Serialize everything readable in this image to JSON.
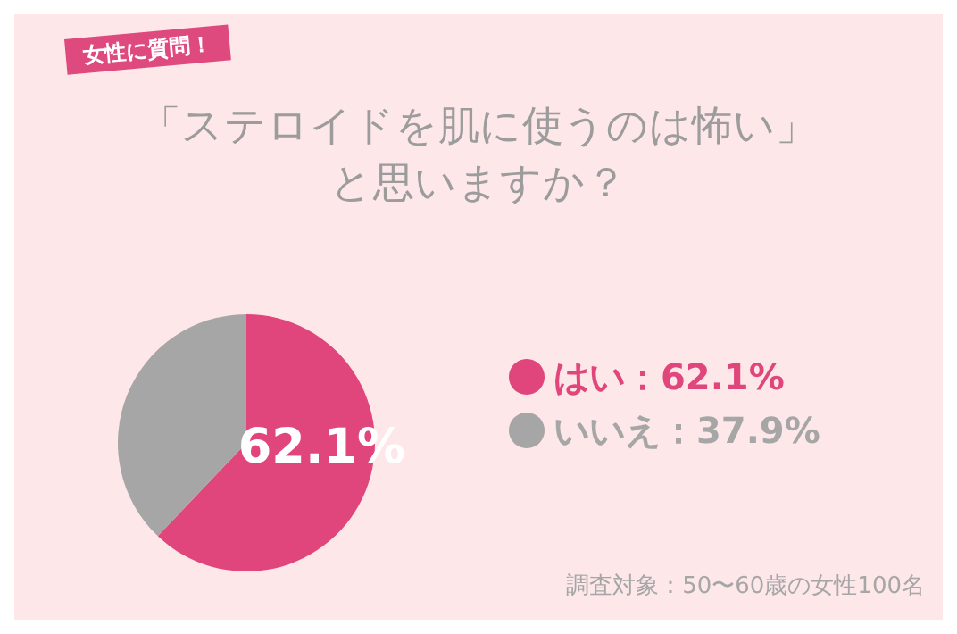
{
  "chart_data": {
    "type": "pie",
    "title": "「ステロイドを肌に使うのは怖い」と思いますか？",
    "subtitle": "女性に質問！",
    "categories": [
      "はい：62.1%",
      "いいえ：37.9%"
    ],
    "values": [
      62.1,
      37.9
    ],
    "colors": [
      "#e0457b",
      "#a6a6a6"
    ],
    "value_labels": [
      "62.1%",
      null
    ],
    "legend": "right",
    "annotations": [
      "調査対象：50〜60歳の女性100名"
    ]
  }
}
